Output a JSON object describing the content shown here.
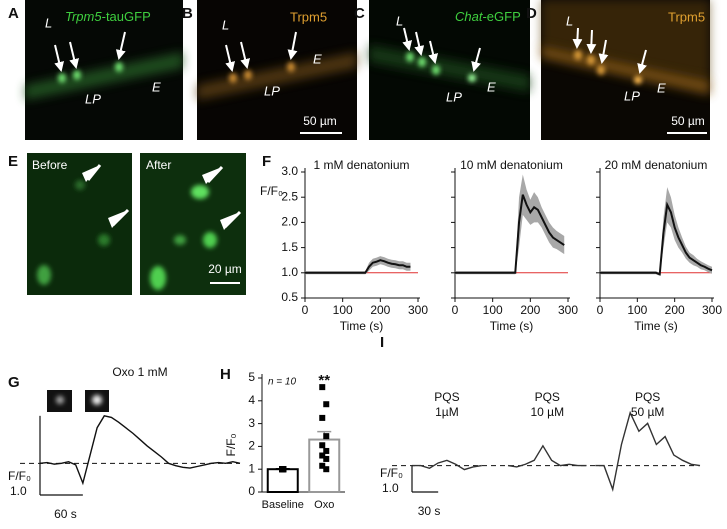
{
  "image_panels": [
    {
      "letter": "A",
      "label_italic": "Trpm5",
      "label": "-tauGFP",
      "tissue_labels": [
        "L",
        "E",
        "LP"
      ]
    },
    {
      "letter": "B",
      "label": "Trpm5",
      "tissue_labels": [
        "L",
        "E",
        "LP"
      ],
      "scale_bar": "50 µm"
    },
    {
      "letter": "C",
      "label_italic": "Chat",
      "label": "-eGFP",
      "tissue_labels": [
        "L",
        "LP",
        "E"
      ]
    },
    {
      "letter": "D",
      "label": "Trpm5",
      "tissue_labels": [
        "L",
        "LP",
        "E"
      ],
      "scale_bar": "50 µm"
    },
    {
      "letter": "E",
      "captions": [
        "Before",
        "After"
      ],
      "scale_bar": "20 µm"
    }
  ],
  "chart_data": [
    {
      "type": "line",
      "panel": "F",
      "title": "1 mM denatonium",
      "x_label": "Time (s)",
      "y_label": "F/F₀",
      "xlim": [
        0,
        300
      ],
      "xticks": [
        0,
        100,
        200,
        300
      ],
      "ylim": [
        0.5,
        3.0
      ],
      "yticks": [
        0.5,
        {
          "value": 1.0,
          "label": "1.0"
        },
        1.5,
        {
          "value": 2.0,
          "label": "2.0"
        },
        2.5,
        {
          "value": 3.0,
          "label": "3.0"
        }
      ],
      "reference_line": {
        "value": 1.0,
        "color": "#e03030"
      },
      "x": [
        0,
        10,
        20,
        30,
        40,
        50,
        60,
        70,
        80,
        90,
        100,
        110,
        120,
        130,
        140,
        150,
        160,
        170,
        180,
        190,
        200,
        210,
        220,
        230,
        240,
        250,
        260,
        270,
        280
      ],
      "series": [
        {
          "color": "#111111",
          "band_color": "#a8a8a8",
          "values": [
            1.0,
            1.0,
            1.0,
            1.0,
            1.0,
            1.0,
            1.0,
            1.0,
            1.0,
            1.0,
            1.0,
            1.0,
            1.0,
            1.0,
            1.0,
            1.0,
            1.0,
            1.12,
            1.2,
            1.22,
            1.25,
            1.23,
            1.2,
            1.18,
            1.17,
            1.15,
            1.15,
            1.12,
            1.12
          ],
          "errors": [
            0.03,
            0.03,
            0.03,
            0.03,
            0.03,
            0.03,
            0.03,
            0.03,
            0.03,
            0.03,
            0.03,
            0.03,
            0.03,
            0.03,
            0.03,
            0.03,
            0.03,
            0.08,
            0.08,
            0.08,
            0.08,
            0.08,
            0.08,
            0.08,
            0.08,
            0.08,
            0.08,
            0.08,
            0.08
          ]
        }
      ]
    },
    {
      "type": "line",
      "title": "10 mM denatonium",
      "x_label": "Time (s)",
      "xlim": [
        0,
        300
      ],
      "xticks": [
        0,
        100,
        200,
        300
      ],
      "ylim": [
        0.5,
        3.0
      ],
      "yticks": [
        0.5,
        1,
        1.5,
        2,
        2.5,
        3
      ],
      "ytick_labels": false,
      "reference_line": {
        "value": 1.0,
        "color": "#e03030"
      },
      "x": [
        0,
        10,
        20,
        30,
        40,
        50,
        60,
        70,
        80,
        90,
        100,
        110,
        120,
        130,
        140,
        150,
        160,
        170,
        180,
        190,
        200,
        210,
        220,
        230,
        240,
        250,
        260,
        270,
        280,
        290
      ],
      "series": [
        {
          "color": "#111111",
          "band_color": "#a8a8a8",
          "values": [
            1.0,
            1.0,
            1.0,
            1.0,
            1.0,
            1.0,
            1.0,
            1.0,
            1.0,
            1.0,
            1.0,
            1.0,
            1.0,
            1.0,
            1.0,
            1.0,
            1.0,
            2.0,
            2.55,
            2.35,
            2.2,
            2.3,
            2.25,
            2.1,
            1.95,
            1.8,
            1.7,
            1.65,
            1.6,
            1.55
          ],
          "errors": [
            0.03,
            0.03,
            0.03,
            0.03,
            0.03,
            0.03,
            0.03,
            0.03,
            0.03,
            0.03,
            0.03,
            0.03,
            0.03,
            0.03,
            0.03,
            0.03,
            0.03,
            0.5,
            0.4,
            0.3,
            0.25,
            0.3,
            0.25,
            0.2,
            0.2,
            0.2,
            0.2,
            0.18,
            0.18,
            0.18
          ]
        }
      ]
    },
    {
      "type": "line",
      "title": "20 mM denatonium",
      "x_label": "Time (s)",
      "xlim": [
        0,
        300
      ],
      "xticks": [
        0,
        100,
        200,
        300
      ],
      "ylim": [
        0.5,
        3.0
      ],
      "yticks": [
        0.5,
        1,
        1.5,
        2,
        2.5,
        3
      ],
      "ytick_labels": false,
      "reference_line": {
        "value": 1.0,
        "color": "#e03030"
      },
      "x": [
        0,
        10,
        20,
        30,
        40,
        50,
        60,
        70,
        80,
        90,
        100,
        110,
        120,
        130,
        140,
        150,
        160,
        170,
        180,
        190,
        200,
        210,
        220,
        230,
        240,
        250,
        260,
        270,
        280,
        290,
        300
      ],
      "series": [
        {
          "color": "#111111",
          "band_color": "#a8a8a8",
          "values": [
            1.0,
            1.0,
            1.0,
            1.0,
            1.0,
            1.0,
            1.0,
            1.0,
            1.0,
            1.0,
            1.0,
            1.0,
            1.0,
            1.0,
            1.0,
            1.0,
            0.97,
            1.8,
            2.35,
            2.2,
            1.9,
            1.7,
            1.55,
            1.4,
            1.3,
            1.25,
            1.2,
            1.15,
            1.12,
            1.08,
            1.05
          ],
          "errors": [
            0.03,
            0.03,
            0.03,
            0.03,
            0.03,
            0.03,
            0.03,
            0.03,
            0.03,
            0.03,
            0.03,
            0.03,
            0.03,
            0.03,
            0.03,
            0.03,
            0.03,
            0.3,
            0.35,
            0.3,
            0.25,
            0.2,
            0.15,
            0.12,
            0.1,
            0.1,
            0.08,
            0.08,
            0.07,
            0.07,
            0.07
          ]
        }
      ]
    },
    {
      "type": "line",
      "panel": "G",
      "title": "Oxo 1 mM",
      "y_label": "F/F₀",
      "xlim": [
        0,
        280
      ],
      "ylim": [
        0.6,
        1.8
      ],
      "reference_line": {
        "value": 1.0,
        "color": "#111111",
        "dashed": true
      },
      "x_scale_bar": {
        "value": 60,
        "label": "60 s"
      },
      "y_scale_bar": {
        "value": 1.0,
        "label": "1.0"
      },
      "x": [
        0,
        10,
        20,
        30,
        40,
        50,
        60,
        70,
        80,
        90,
        100,
        110,
        120,
        130,
        140,
        150,
        160,
        170,
        180,
        190,
        200,
        210,
        220,
        230,
        240,
        250,
        260,
        270,
        280
      ],
      "series": [
        {
          "color": "#111111",
          "values": [
            1.0,
            1.01,
            0.99,
            1.0,
            1.02,
            0.98,
            0.75,
            1.1,
            1.45,
            1.6,
            1.58,
            1.52,
            1.45,
            1.38,
            1.3,
            1.22,
            1.15,
            1.08,
            1.0,
            0.97,
            0.95,
            0.94,
            0.96,
            0.98,
            1.0,
            1.01,
            1.0,
            1.02,
            1.0
          ]
        }
      ]
    },
    {
      "type": "bar",
      "panel": "H",
      "y_label": "F/F₀",
      "annotation": "n = 10",
      "significance": "**",
      "categories": [
        "Baseline",
        "Oxo"
      ],
      "values": [
        1.0,
        2.3
      ],
      "errors": [
        0.02,
        0.35
      ],
      "colors": [
        "#000000",
        "#999999"
      ],
      "points": [
        [
          1.0,
          1.0,
          1.0,
          1.0,
          1.0,
          1.0,
          1.0,
          1.0,
          1.0,
          1.0
        ],
        [
          4.6,
          3.85,
          3.25,
          2.45,
          2.05,
          1.8,
          1.6,
          1.45,
          1.15,
          1.0
        ]
      ],
      "ylim": [
        0,
        5
      ],
      "yticks": [
        0,
        1,
        2,
        3,
        4,
        5
      ]
    },
    {
      "type": "line",
      "panel": "I",
      "y_label": "F/F₀",
      "xlim": [
        0,
        330
      ],
      "ylim": [
        0,
        5
      ],
      "reference_line": {
        "value": 1.0,
        "color": "#111111",
        "dashed": true
      },
      "x_scale_bar": {
        "value": 30,
        "label": "30 s"
      },
      "y_scale_bar": {
        "value": 1.0,
        "label": "1.0"
      },
      "series": [
        {
          "color": "#333333",
          "label_lines": [
            "PQS",
            "1µM"
          ],
          "x": [
            0,
            10,
            20,
            30,
            40,
            50,
            60,
            70,
            80
          ],
          "values": [
            1.0,
            1.0,
            0.9,
            1.1,
            1.2,
            1.05,
            0.85,
            0.95,
            1.0
          ]
        },
        {
          "color": "#333333",
          "label_lines": [
            "PQS",
            "10 µM"
          ],
          "x": [
            110,
            120,
            130,
            140,
            150,
            160,
            170,
            180,
            190,
            200
          ],
          "values": [
            1.0,
            0.95,
            1.05,
            1.2,
            1.75,
            1.2,
            1.0,
            1.05,
            1.0,
            1.0
          ]
        },
        {
          "color": "#333333",
          "label_lines": [
            "PQS",
            "50 µM"
          ],
          "x": [
            210,
            220,
            230,
            240,
            250,
            260,
            270,
            280,
            290,
            300,
            310,
            320,
            330
          ],
          "values": [
            1.0,
            1.0,
            0.1,
            1.8,
            3.0,
            2.3,
            2.6,
            1.8,
            2.1,
            1.4,
            1.2,
            1.05,
            1.0
          ]
        }
      ]
    }
  ]
}
